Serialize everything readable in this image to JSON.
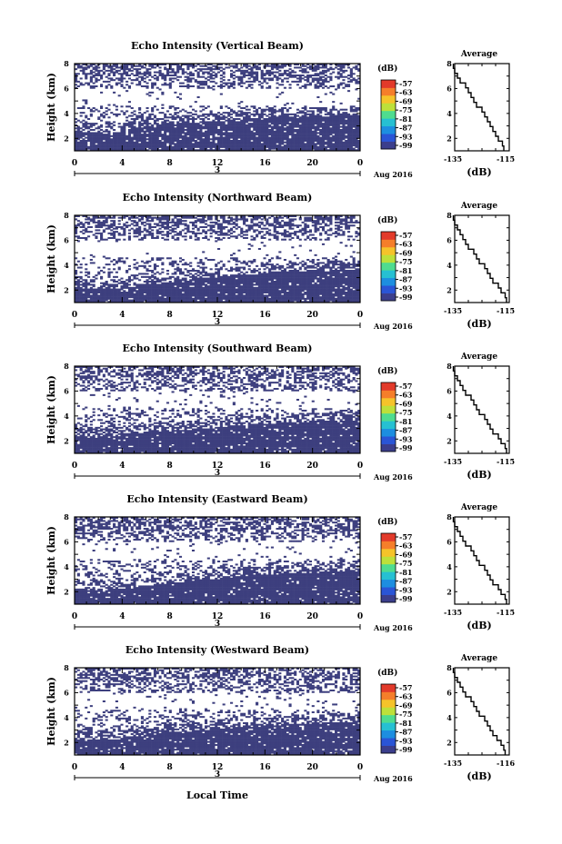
{
  "chart_data": {
    "type": "heatmap",
    "colors": {
      "fill": "#3d3f7e",
      "colorbar": [
        "#3b3e8c",
        "#2a55d6",
        "#1d8ee0",
        "#26c0d2",
        "#4fdc8f",
        "#bde03a",
        "#f5c32a",
        "#f57e2a",
        "#e23a2a"
      ]
    },
    "colorbar": {
      "label": "(dB)",
      "ticks": [
        "-57",
        "-63",
        "-69",
        "-75",
        "-81",
        "-87",
        "-93",
        "-99"
      ]
    },
    "x_axis": {
      "ticks": [
        "0",
        "4",
        "8",
        "12",
        "16",
        "20",
        "0"
      ],
      "day_label": "3",
      "date_label": "Aug 2016",
      "xlabel": "Local Time",
      "xlim": [
        0,
        24
      ]
    },
    "y_axis": {
      "ylabel": "Height (km)",
      "ticks": [
        "2",
        "4",
        "6",
        "8"
      ],
      "ylim": [
        1,
        8
      ]
    },
    "profile": {
      "title": "Average",
      "xlabel": "(dB)",
      "ylim": [
        1,
        8
      ],
      "xlim": [
        -135,
        -115
      ],
      "yticks": [
        "2",
        "4",
        "6",
        "8"
      ]
    },
    "panels": [
      {
        "title": "Echo Intensity (Vertical Beam)",
        "boundary": [
          3.0,
          2.8,
          3.4,
          3.6,
          3.8,
          4.0,
          4.2,
          4.2,
          4.3
        ],
        "spacing": 1.2,
        "seed": 11,
        "profile_ticks": [
          "-135",
          "-115"
        ],
        "profile_values": [
          -117,
          -117.5,
          -119,
          -120,
          -121,
          -122,
          -123,
          -124,
          -125,
          -127,
          -128,
          -129,
          -130,
          -131,
          -133,
          -134,
          -135,
          -135.5
        ]
      },
      {
        "title": "Echo Intensity (Northward Beam)",
        "boundary": [
          2.6,
          2.5,
          2.8,
          3.2,
          3.5,
          3.7,
          3.9,
          4.0,
          4.1
        ],
        "spacing": 1.4,
        "seed": 23,
        "profile_ticks": [
          "-135",
          "-115"
        ],
        "profile_values": [
          -116,
          -116.5,
          -118,
          -119,
          -121,
          -122,
          -123,
          -124,
          -126,
          -127,
          -128,
          -130,
          -131,
          -132,
          -133,
          -134,
          -135,
          -135.5
        ]
      },
      {
        "title": "Echo Intensity (Southward Beam)",
        "boundary": [
          2.8,
          2.7,
          3.1,
          3.3,
          3.5,
          3.7,
          3.9,
          4.0,
          4.1
        ],
        "spacing": 1.3,
        "seed": 37,
        "profile_ticks": [
          "-135",
          "-115"
        ],
        "profile_values": [
          -116,
          -116.5,
          -118,
          -119,
          -121,
          -122,
          -123,
          -124,
          -126,
          -127,
          -128,
          -129,
          -131,
          -132,
          -133,
          -134,
          -135,
          -135.5
        ]
      },
      {
        "title": "Echo Intensity (Eastward Beam)",
        "boundary": [
          2.6,
          2.5,
          2.9,
          3.2,
          3.5,
          3.7,
          3.9,
          4.0,
          4.0
        ],
        "spacing": 1.4,
        "seed": 41,
        "profile_ticks": [
          "-135",
          "-115"
        ],
        "profile_values": [
          -116,
          -116.5,
          -118,
          -119,
          -121,
          -122,
          -123,
          -124,
          -126,
          -127,
          -128,
          -129,
          -131,
          -132,
          -133,
          -134,
          -135,
          -135.5
        ]
      },
      {
        "title": "Echo Intensity (Westward Beam)",
        "boundary": [
          2.7,
          2.6,
          3.0,
          3.3,
          3.5,
          3.7,
          3.9,
          4.0,
          4.1
        ],
        "spacing": 1.2,
        "seed": 53,
        "profile_ticks": [
          "-135",
          "-116"
        ],
        "profile_values": [
          -116.5,
          -117,
          -118,
          -119.5,
          -121,
          -122,
          -123,
          -124,
          -126,
          -127,
          -128,
          -129,
          -131,
          -132,
          -133,
          -134,
          -135,
          -135.5
        ]
      }
    ]
  }
}
